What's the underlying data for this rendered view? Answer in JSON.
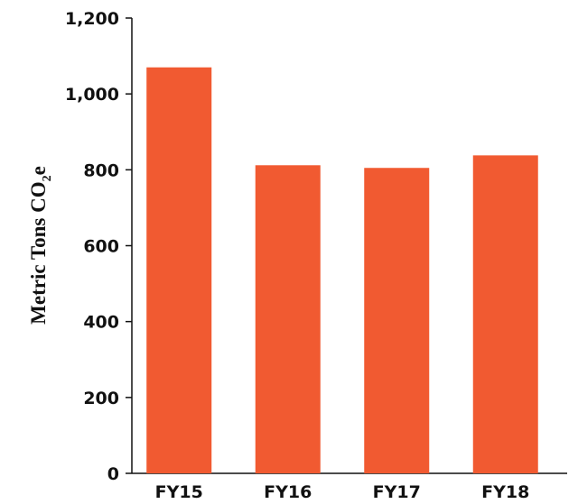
{
  "chart_data": {
    "type": "bar",
    "categories": [
      "FY15",
      "FY16",
      "FY17",
      "FY18"
    ],
    "values": [
      1070,
      812,
      805,
      838
    ],
    "title": "",
    "xlabel": "",
    "ylabel": {
      "prefix": "Metric Tons CO",
      "subscript": "2",
      "suffix": "e"
    },
    "ylim": [
      0,
      1200
    ],
    "yticks": [
      0,
      200,
      400,
      600,
      800,
      1000,
      1200
    ],
    "ytick_labels": [
      "0",
      "200",
      "400",
      "600",
      "800",
      "1,000",
      "1,200"
    ],
    "grid": false,
    "legend": "none",
    "colors": {
      "bar": "#F15A31",
      "axis": "#111111",
      "text": "#111111",
      "background": "#FFFFFF"
    }
  }
}
